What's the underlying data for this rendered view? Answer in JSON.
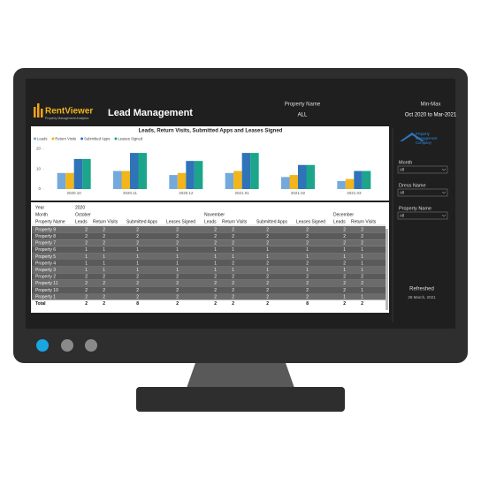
{
  "header": {
    "logo": "RentViewer",
    "logo_subtitle": "Property Management Analytics",
    "title": "Lead Management",
    "filter_label": "Property Name",
    "filter_value": "ALL",
    "range_label": "Min-Max",
    "range_value": "Oct 2020 to Mar-2021"
  },
  "chart_data": {
    "type": "bar",
    "title": "Leads, Return Visits, Submitted Apps and Leases Signed",
    "categories": [
      "2020.10",
      "2020.11",
      "2020.12",
      "2021.01",
      "2021.02",
      "2021.03"
    ],
    "series": [
      {
        "name": "Leads",
        "color": "#74a9dc",
        "values": [
          8,
          9,
          7,
          8,
          6,
          4
        ]
      },
      {
        "name": "Return Visits",
        "color": "#f2b51c",
        "values": [
          8,
          9,
          8,
          9,
          7,
          5
        ]
      },
      {
        "name": "Submitted Apps",
        "color": "#2f73b8",
        "values": [
          15,
          18,
          14,
          18,
          12,
          9
        ]
      },
      {
        "name": "Leases Signed",
        "color": "#1ba58a",
        "values": [
          15,
          18,
          14,
          18,
          12,
          9
        ]
      }
    ],
    "ylim": [
      0,
      22
    ],
    "yticks": [
      0,
      10,
      20
    ],
    "legend": "top-left"
  },
  "table": {
    "year_label": "Year",
    "year": "2020",
    "month_label": "Month",
    "months": [
      "October",
      "November",
      "December"
    ],
    "columns": [
      "Property Name",
      "Leads",
      "Return Visits",
      "Submitted Apps",
      "Leases Signed",
      "Leads",
      "Return Visits",
      "Submitted Apps",
      "Leases Signed",
      "Leads",
      "Return Visits"
    ],
    "rows": [
      [
        "Property 9",
        "2",
        "2",
        "2",
        "2",
        "2",
        "2",
        "2",
        "2",
        "2",
        "2"
      ],
      [
        "Property 8",
        "2",
        "2",
        "2",
        "2",
        "2",
        "2",
        "2",
        "2",
        "2",
        "2"
      ],
      [
        "Property 7",
        "2",
        "2",
        "2",
        "2",
        "2",
        "2",
        "2",
        "2",
        "2",
        "2"
      ],
      [
        "Property 6",
        "1",
        "1",
        "1",
        "1",
        "1",
        "1",
        "1",
        "1",
        "1",
        "1"
      ],
      [
        "Property 5",
        "1",
        "1",
        "1",
        "1",
        "1",
        "1",
        "1",
        "1",
        "1",
        "1"
      ],
      [
        "Property 4",
        "1",
        "1",
        "1",
        "1",
        "1",
        "2",
        "2",
        "2",
        "2",
        "1"
      ],
      [
        "Property 3",
        "1",
        "1",
        "1",
        "1",
        "1",
        "1",
        "1",
        "1",
        "1",
        "1"
      ],
      [
        "Property 2",
        "2",
        "2",
        "2",
        "2",
        "2",
        "2",
        "2",
        "2",
        "2",
        "2"
      ],
      [
        "Property 11",
        "2",
        "2",
        "2",
        "2",
        "2",
        "2",
        "2",
        "2",
        "2",
        "2"
      ],
      [
        "Property 10",
        "2",
        "2",
        "2",
        "2",
        "2",
        "2",
        "2",
        "2",
        "2",
        "1"
      ],
      [
        "Property 1",
        "2",
        "2",
        "2",
        "2",
        "2",
        "2",
        "2",
        "2",
        "1",
        "1"
      ],
      [
        "Total",
        "2",
        "2",
        "8",
        "2",
        "2",
        "2",
        "2",
        "8",
        "2",
        "2"
      ]
    ]
  },
  "sidebar": {
    "logo_lines": [
      "Property",
      "Management",
      "Company"
    ],
    "filters": [
      {
        "label": "Month",
        "value": "All"
      },
      {
        "label": "Dress Name",
        "value": "All"
      },
      {
        "label": "Property Name",
        "value": "All"
      }
    ],
    "refreshed_label": "Refreshed",
    "refreshed_date": "29 March, 2021"
  }
}
